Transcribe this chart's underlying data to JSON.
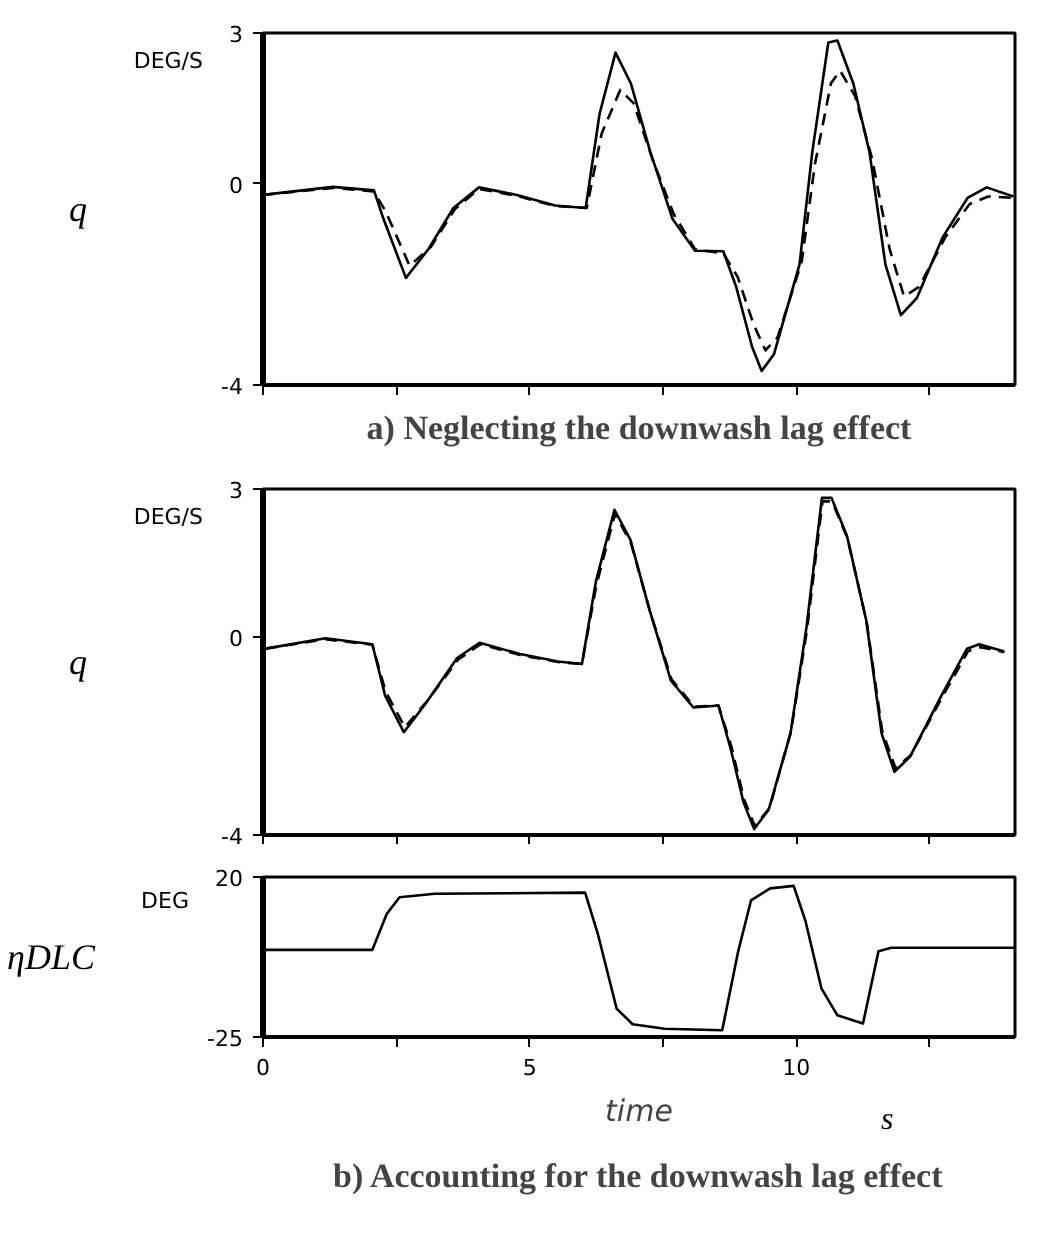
{
  "chart_data": [
    {
      "type": "line",
      "title": "a) Neglecting the downwash lag effect",
      "ylabel": "q",
      "annotations": [
        "DEG/S"
      ],
      "xlim": [
        0,
        14.1
      ],
      "ylim": [
        -4,
        3
      ],
      "xticks": [
        0,
        2.5,
        5,
        7.5,
        10,
        12.5
      ],
      "yticks": [
        3,
        0,
        -4
      ],
      "tick_labels": "y",
      "grid": false,
      "series": [
        {
          "color": "#000000",
          "line_style": "solid",
          "x": [
            0,
            1.31,
            2.08,
            2.26,
            2.68,
            3.1,
            3.57,
            4.05,
            4.76,
            5.48,
            6.05,
            6.31,
            6.61,
            6.9,
            7.26,
            7.68,
            8.1,
            8.63,
            8.87,
            9.17,
            9.35,
            9.58,
            10.06,
            10.3,
            10.6,
            10.77,
            11.07,
            11.37,
            11.67,
            11.96,
            12.26,
            12.74,
            13.21,
            13.57,
            14.07
          ],
          "values": [
            -0.22,
            -0.06,
            -0.13,
            -0.7,
            -1.87,
            -1.3,
            -0.48,
            -0.07,
            -0.22,
            -0.43,
            -0.48,
            1.39,
            2.61,
            1.99,
            0.64,
            -0.7,
            -1.33,
            -1.34,
            -2.04,
            -3.24,
            -3.72,
            -3.39,
            -1.6,
            0.64,
            2.81,
            2.85,
            1.99,
            0.64,
            -1.6,
            -2.61,
            -2.27,
            -1.07,
            -0.28,
            -0.07,
            -0.25
          ]
        },
        {
          "color": "#000000",
          "line_style": "dashed",
          "x": [
            0,
            1.31,
            2.08,
            2.3,
            2.75,
            3.15,
            3.6,
            4.05,
            4.76,
            5.48,
            6.07,
            6.35,
            6.7,
            6.95,
            7.3,
            7.7,
            8.1,
            8.63,
            8.9,
            9.2,
            9.42,
            9.65,
            10.1,
            10.35,
            10.65,
            10.82,
            11.1,
            11.42,
            11.75,
            12.02,
            12.3,
            12.8,
            13.25,
            13.6,
            14.07
          ],
          "values": [
            -0.22,
            -0.08,
            -0.15,
            -0.55,
            -1.63,
            -1.25,
            -0.5,
            -0.1,
            -0.24,
            -0.44,
            -0.48,
            1.0,
            1.87,
            1.6,
            0.5,
            -0.6,
            -1.3,
            -1.38,
            -1.85,
            -2.8,
            -3.31,
            -3.05,
            -1.55,
            0.4,
            2.0,
            2.25,
            1.75,
            0.5,
            -1.3,
            -2.24,
            -2.05,
            -1.05,
            -0.4,
            -0.25,
            -0.28
          ]
        }
      ]
    },
    {
      "type": "line",
      "ylabel": "q",
      "annotations": [
        "DEG/S"
      ],
      "xlim": [
        0,
        14.1
      ],
      "ylim": [
        -4,
        3
      ],
      "xticks": [
        0,
        2.5,
        5,
        7.5,
        10,
        12.5
      ],
      "yticks": [
        3,
        0,
        -4
      ],
      "tick_labels": "y",
      "grid": false,
      "series": [
        {
          "color": "#000000",
          "line_style": "solid",
          "x": [
            0.05,
            1.17,
            2.05,
            2.29,
            2.64,
            3.05,
            3.64,
            4.06,
            4.82,
            5.53,
            5.98,
            6.24,
            6.59,
            6.89,
            7.24,
            7.65,
            8.07,
            8.54,
            8.77,
            9.01,
            9.21,
            9.48,
            9.89,
            10.19,
            10.48,
            10.66,
            10.95,
            11.31,
            11.6,
            11.84,
            12.13,
            12.72,
            13.2,
            13.43,
            13.9
          ],
          "values": [
            -0.23,
            -0.02,
            -0.14,
            -1.18,
            -1.92,
            -1.34,
            -0.42,
            -0.11,
            -0.34,
            -0.49,
            -0.54,
            1.12,
            2.58,
            1.97,
            0.58,
            -0.88,
            -1.42,
            -1.38,
            -2.26,
            -3.34,
            -3.88,
            -3.49,
            -1.95,
            0.2,
            2.82,
            2.82,
            2.05,
            0.35,
            -1.95,
            -2.72,
            -2.42,
            -1.18,
            -0.23,
            -0.14,
            -0.29
          ]
        },
        {
          "color": "#000000",
          "line_style": "dashed",
          "x": [
            0.05,
            1.17,
            2.05,
            2.3,
            2.66,
            3.07,
            3.66,
            4.08,
            4.82,
            5.53,
            5.98,
            6.25,
            6.6,
            6.9,
            7.25,
            7.66,
            8.08,
            8.54,
            8.78,
            9.02,
            9.22,
            9.5,
            9.9,
            10.2,
            10.49,
            10.67,
            10.96,
            11.32,
            11.61,
            11.86,
            12.15,
            12.74,
            13.22,
            13.45,
            13.9
          ],
          "values": [
            -0.23,
            -0.04,
            -0.15,
            -1.1,
            -1.82,
            -1.3,
            -0.45,
            -0.14,
            -0.36,
            -0.5,
            -0.54,
            1.05,
            2.5,
            1.9,
            0.55,
            -0.85,
            -1.4,
            -1.38,
            -2.2,
            -3.28,
            -3.82,
            -3.45,
            -1.9,
            0.15,
            2.75,
            2.75,
            2.0,
            0.3,
            -1.9,
            -2.65,
            -2.38,
            -1.2,
            -0.28,
            -0.2,
            -0.3
          ]
        }
      ]
    },
    {
      "type": "line",
      "title": "b) Accounting for the downwash lag effect",
      "xlabel": "time",
      "ylabel": "ηDLC",
      "annotations": [
        "DEG",
        "s"
      ],
      "xlim": [
        0,
        14.1
      ],
      "ylim": [
        -25,
        20
      ],
      "xticks": [
        0,
        {
          "value": 2.5,
          "label": null
        },
        5,
        {
          "value": 7.5,
          "label": null
        },
        10,
        {
          "value": 12.5,
          "label": null
        }
      ],
      "yticks": [
        20,
        -25
      ],
      "grid": false,
      "series": [
        {
          "color": "#000000",
          "line_style": "solid",
          "x": [
            0.05,
            2.05,
            2.32,
            2.56,
            3.22,
            6.04,
            6.28,
            6.63,
            6.93,
            7.53,
            8.61,
            8.91,
            9.15,
            9.51,
            9.95,
            10.17,
            10.47,
            10.77,
            11.25,
            11.54,
            11.78,
            14.1
          ],
          "values": [
            -0.5,
            -0.5,
            9.6,
            14.3,
            15.3,
            15.6,
            3.9,
            -17.0,
            -21.4,
            -22.7,
            -23.1,
            -0.9,
            13.4,
            16.8,
            17.5,
            7.7,
            -11.3,
            -18.9,
            -21.2,
            -0.9,
            0.1,
            0.1
          ]
        }
      ]
    }
  ]
}
